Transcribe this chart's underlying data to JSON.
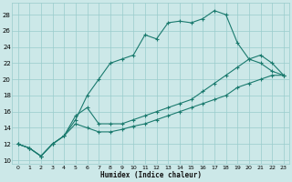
{
  "xlabel": "Humidex (Indice chaleur)",
  "xlim": [
    -0.5,
    23.5
  ],
  "ylim": [
    9.5,
    29.5
  ],
  "xticks": [
    0,
    1,
    2,
    3,
    4,
    5,
    6,
    7,
    8,
    9,
    10,
    11,
    12,
    13,
    14,
    15,
    16,
    17,
    18,
    19,
    20,
    21,
    22,
    23
  ],
  "yticks": [
    10,
    12,
    14,
    16,
    18,
    20,
    22,
    24,
    26,
    28
  ],
  "bg_color": "#cce8e8",
  "grid_color": "#99cccc",
  "line_color": "#1a7a6e",
  "curve1_x": [
    0,
    1,
    2,
    3,
    4,
    5,
    6,
    7,
    8,
    9,
    10,
    11,
    12,
    13,
    14,
    15,
    16,
    17,
    18,
    19,
    20,
    21,
    22,
    23
  ],
  "curve1_y": [
    12.0,
    11.5,
    10.5,
    12.0,
    13.0,
    15.0,
    18.0,
    20.0,
    22.0,
    22.5,
    23.0,
    25.5,
    25.0,
    27.0,
    27.2,
    27.0,
    27.5,
    28.5,
    28.0,
    24.5,
    22.5,
    22.0,
    21.0,
    20.5
  ],
  "curve2_x": [
    0,
    1,
    2,
    3,
    4,
    5,
    6,
    7,
    8,
    9,
    10,
    11,
    12,
    13,
    14,
    15,
    16,
    17,
    18,
    19,
    20,
    21,
    22,
    23
  ],
  "curve2_y": [
    12.0,
    11.5,
    10.5,
    12.0,
    13.0,
    14.5,
    14.0,
    13.5,
    13.5,
    13.8,
    14.2,
    14.5,
    15.0,
    15.5,
    16.0,
    16.5,
    17.0,
    17.5,
    18.0,
    19.0,
    19.5,
    20.0,
    20.5,
    20.5
  ],
  "curve3_x": [
    0,
    1,
    2,
    3,
    4,
    5,
    6,
    7,
    8,
    9,
    10,
    11,
    12,
    13,
    14,
    15,
    16,
    17,
    18,
    19,
    20,
    21,
    22,
    23
  ],
  "curve3_y": [
    12.0,
    11.5,
    10.5,
    12.0,
    13.0,
    15.5,
    16.5,
    14.5,
    14.5,
    14.5,
    15.0,
    15.5,
    16.0,
    16.5,
    17.0,
    17.5,
    18.5,
    19.5,
    20.5,
    21.5,
    22.5,
    23.0,
    22.0,
    20.5
  ],
  "marker_size": 2.0,
  "linewidth": 0.8
}
